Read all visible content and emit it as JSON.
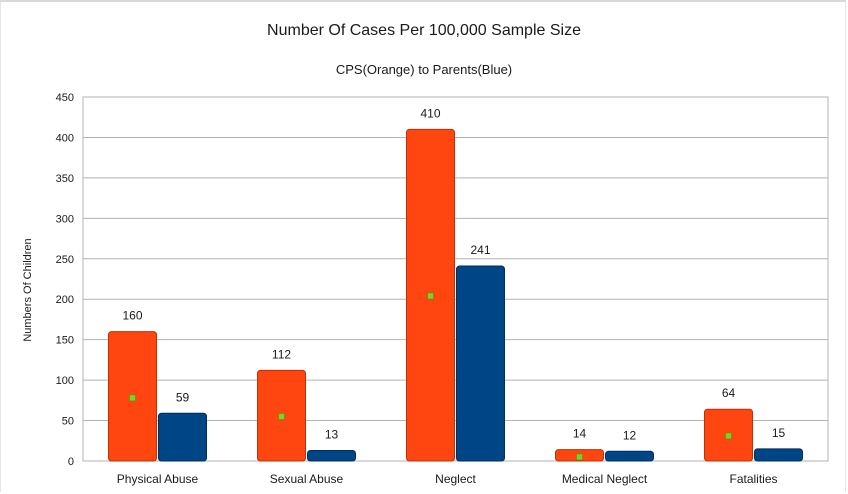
{
  "chart_data": {
    "type": "bar",
    "title": "Number Of Cases Per 100,000 Sample Size",
    "subtitle": "CPS(Orange) to Parents(Blue)",
    "xlabel": "",
    "ylabel": "Numbers Of Children",
    "categories": [
      "Physical Abuse",
      "Sexual Abuse",
      "Neglect",
      "Medical Neglect",
      "Fatalities"
    ],
    "series": [
      {
        "values": [
          160,
          112,
          410,
          14,
          64
        ],
        "color": "#ff4510"
      },
      {
        "values": [
          59,
          13,
          241,
          12,
          15
        ],
        "color": "#004586"
      }
    ],
    "markers": [
      78,
      55,
      204,
      5,
      31
    ],
    "marker_color": "#7ed321",
    "ylim": [
      0,
      450
    ],
    "yticks": [
      0,
      50,
      100,
      150,
      200,
      250,
      300,
      350,
      400,
      450
    ],
    "grid": true,
    "legend": "none"
  }
}
